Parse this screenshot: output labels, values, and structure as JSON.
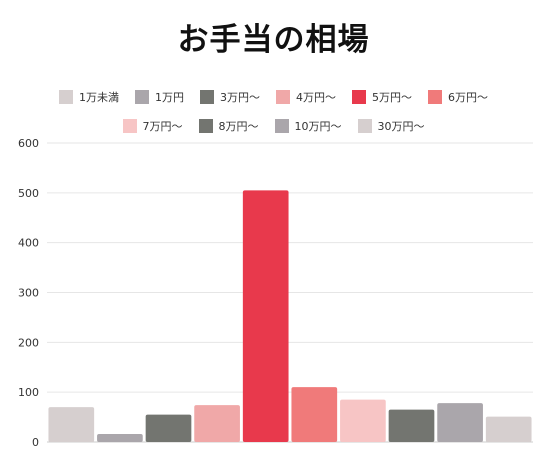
{
  "chart_data": {
    "type": "bar",
    "title": "お手当の相場",
    "xlabel": "",
    "ylabel": "",
    "ylim": [
      0,
      600
    ],
    "yticks": [
      0,
      100,
      200,
      300,
      400,
      500,
      600
    ],
    "grid": true,
    "legend_position": "top",
    "categories": [
      "1万未満",
      "1万円",
      "3万円〜",
      "4万円〜",
      "5万円〜",
      "6万円〜",
      "7万円〜",
      "8万円〜",
      "10万円〜",
      "30万円〜"
    ],
    "values": [
      70,
      16,
      55,
      74,
      505,
      110,
      85,
      65,
      78,
      51
    ],
    "colors": [
      "#d6cfcf",
      "#aaa6ab",
      "#737570",
      "#f0a8a8",
      "#e8394c",
      "#f07a7a",
      "#f7c5c5",
      "#737570",
      "#aaa6ab",
      "#d6cfcf"
    ]
  }
}
